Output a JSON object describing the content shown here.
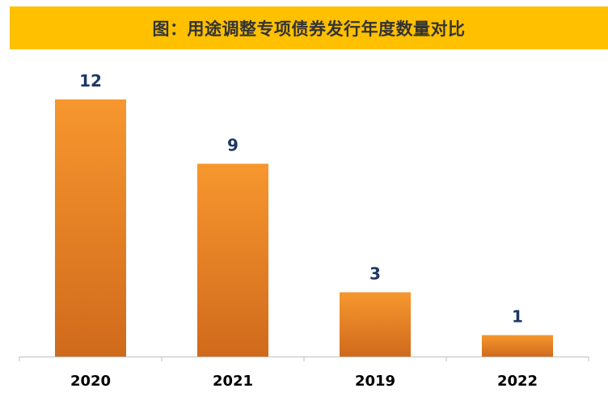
{
  "title": "图：用途调整专项债券发行年度数量对比",
  "colors": {
    "title_bg": "#FFC000",
    "bar_top": "#F7972E",
    "bar_bottom": "#D06A1C",
    "data_label": "#1F3864",
    "axis": "#BFBFBF"
  },
  "chart_data": {
    "type": "bar",
    "title": "图：用途调整专项债券发行年度数量对比",
    "categories": [
      "2020",
      "2021",
      "2019",
      "2022"
    ],
    "values": [
      12,
      9,
      3,
      1
    ],
    "xlabel": "",
    "ylabel": "",
    "ylim": [
      0,
      12
    ],
    "grid": false,
    "legend": "none",
    "data_labels": true
  }
}
